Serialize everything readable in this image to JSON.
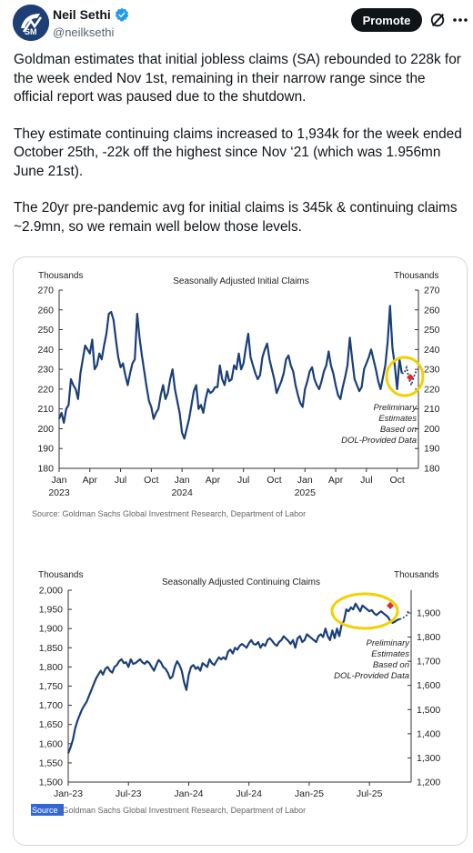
{
  "header": {
    "display_name": "Neil Sethi",
    "handle": "@neilksethi",
    "promote_label": "Promote",
    "icons": [
      "avatar-logo",
      "verified-badge-icon",
      "grok-icon",
      "more-options-icon"
    ]
  },
  "tweet": {
    "paragraphs": [
      "Goldman estimates that initial jobless claims (SA) rebounded to 228k for the week ended Nov 1st, remaining in their narrow range since the official report was paused due to the shutdown.",
      "They estimate continuing claims increased to 1,934k for the week ended October 25th, -22k off the highest since Nov ‘21 (which was 1.956mn June 21st).",
      "The 20yr pre-pandemic avg for initial claims is 345k & continuing claims ~2.9mn, so we remain well below those levels."
    ]
  },
  "colors": {
    "line": "#1a3f7a",
    "highlight": "#f5d000",
    "marker": "#d92b2b",
    "grid": "#cccccc",
    "text_brand": "#1d9bf0"
  },
  "chart_data": [
    {
      "type": "line",
      "title": "Seasonally Adjusted Initial Claims",
      "left_unit": "Thousands",
      "right_unit": "Thousands",
      "y_ticks": [
        180,
        190,
        200,
        210,
        220,
        230,
        240,
        250,
        260,
        270
      ],
      "ylim": [
        180,
        270
      ],
      "x_ticks": [
        {
          "label": "Jan",
          "year": "2023",
          "t": 0
        },
        {
          "label": "Apr",
          "year": "",
          "t": 13
        },
        {
          "label": "Jul",
          "year": "",
          "t": 26
        },
        {
          "label": "Oct",
          "year": "",
          "t": 39
        },
        {
          "label": "Jan",
          "year": "2024",
          "t": 52
        },
        {
          "label": "Apr",
          "year": "",
          "t": 65
        },
        {
          "label": "Jul",
          "year": "",
          "t": 78
        },
        {
          "label": "Oct",
          "year": "",
          "t": 91
        },
        {
          "label": "Jan",
          "year": "2025",
          "t": 104
        },
        {
          "label": "Apr",
          "year": "",
          "t": 117
        },
        {
          "label": "Jul",
          "year": "",
          "t": 130
        },
        {
          "label": "Oct",
          "year": "",
          "t": 143
        }
      ],
      "xlim": [
        0,
        152
      ],
      "series_actual": [
        205,
        208,
        203,
        210,
        212,
        225,
        222,
        220,
        215,
        228,
        235,
        242,
        240,
        238,
        245,
        230,
        232,
        238,
        235,
        242,
        248,
        258,
        259,
        255,
        245,
        236,
        231,
        233,
        227,
        222,
        228,
        233,
        235,
        258,
        246,
        237,
        229,
        221,
        214,
        211,
        205,
        208,
        210,
        217,
        222,
        215,
        218,
        225,
        230,
        220,
        214,
        208,
        198,
        195,
        200,
        205,
        212,
        219,
        222,
        210,
        212,
        208,
        215,
        220,
        218,
        219,
        221,
        221,
        232,
        225,
        222,
        229,
        224,
        225,
        232,
        230,
        238,
        230,
        233,
        241,
        248,
        236,
        232,
        228,
        225,
        227,
        236,
        240,
        243,
        235,
        230,
        225,
        218,
        221,
        224,
        228,
        235,
        237,
        232,
        229,
        222,
        217,
        213,
        211,
        220,
        224,
        229,
        231,
        225,
        222,
        220,
        224,
        229,
        232,
        239,
        232,
        228,
        222,
        217,
        215,
        221,
        226,
        232,
        246,
        235,
        225,
        222,
        219,
        221,
        230,
        233,
        236,
        240,
        235,
        230,
        224,
        220,
        226,
        232,
        244,
        262,
        241,
        232,
        220,
        235,
        228
      ],
      "series_estimate": [
        228,
        231,
        225,
        222,
        226,
        229
      ],
      "annotations": [
        "Preliminary",
        "Estimates",
        "Based on",
        "DOL-Provided Data"
      ],
      "source": "Source: Goldman Sachs Global Investment Research, Department of Labor"
    },
    {
      "type": "line",
      "title": "Seasonally Adjusted Continuing Claims",
      "left_unit": "Thousands",
      "right_unit": "Thousands",
      "y_ticks_left": [
        "1,500",
        "1,550",
        "1,600",
        "1,650",
        "1,700",
        "1,750",
        "1,800",
        "1,850",
        "1,900",
        "1,950",
        "2,000"
      ],
      "y_ticks_right": [
        "1,200",
        "1,300",
        "1,400",
        "1,500",
        "1,600",
        "1,700",
        "1,800",
        "1,900"
      ],
      "ylim": [
        1500,
        2000
      ],
      "x_ticks": [
        {
          "label": "Jan-23",
          "t": 0
        },
        {
          "label": "Jul-23",
          "t": 26
        },
        {
          "label": "Jan-24",
          "t": 52
        },
        {
          "label": "Jul-24",
          "t": 78
        },
        {
          "label": "Jan-25",
          "t": 104
        },
        {
          "label": "Jul-25",
          "t": 130
        }
      ],
      "xlim": [
        0,
        148
      ],
      "series_actual": [
        1575,
        1590,
        1610,
        1640,
        1660,
        1675,
        1690,
        1700,
        1710,
        1725,
        1740,
        1755,
        1770,
        1780,
        1790,
        1780,
        1795,
        1800,
        1790,
        1785,
        1800,
        1805,
        1815,
        1820,
        1810,
        1812,
        1800,
        1820,
        1808,
        1810,
        1815,
        1820,
        1812,
        1808,
        1815,
        1810,
        1800,
        1790,
        1805,
        1818,
        1812,
        1800,
        1795,
        1785,
        1770,
        1775,
        1800,
        1815,
        1805,
        1790,
        1760,
        1740,
        1780,
        1800,
        1805,
        1795,
        1800,
        1790,
        1810,
        1805,
        1800,
        1820,
        1810,
        1805,
        1815,
        1825,
        1820,
        1825,
        1820,
        1840,
        1845,
        1835,
        1850,
        1845,
        1855,
        1860,
        1855,
        1850,
        1862,
        1870,
        1860,
        1858,
        1865,
        1850,
        1860,
        1855,
        1870,
        1875,
        1868,
        1860,
        1855,
        1865,
        1870,
        1880,
        1874,
        1868,
        1860,
        1870,
        1850,
        1875,
        1880,
        1865,
        1870,
        1885,
        1880,
        1875,
        1870,
        1865,
        1880,
        1885,
        1878,
        1900,
        1880,
        1870,
        1895,
        1875,
        1900,
        1880,
        1910,
        1920,
        1950,
        1945,
        1955,
        1950,
        1965,
        1955,
        1945,
        1960,
        1955,
        1950,
        1945,
        1948,
        1940,
        1935,
        1940,
        1945,
        1940,
        1935,
        1930,
        1920,
        1915,
        1918,
        1922,
        1925
      ],
      "series_estimate": [
        1925,
        1930,
        1934,
        1950
      ],
      "annotations": [
        "Preliminary",
        "Estimates",
        "Based on",
        "DOL-Provided Data"
      ],
      "source_label": "Source",
      "source_rest": ": Goldman Sachs Global Investment Research, Department of Labor"
    }
  ]
}
